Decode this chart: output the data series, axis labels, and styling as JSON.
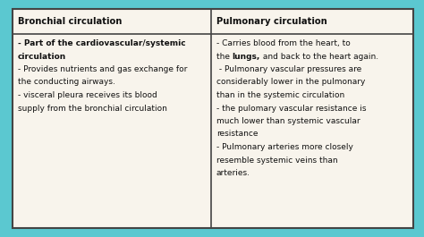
{
  "background_color": "#5bc8d0",
  "table_bg": "#f8f4ec",
  "border_color": "#444444",
  "text_color": "#111111",
  "col1_header": "Bronchial circulation",
  "col2_header": "Pulmonary circulation",
  "figsize": [
    4.74,
    2.65
  ],
  "dpi": 100,
  "col1_lines": [
    {
      "text": "- Part of the cardiovascular/systemic",
      "bold": true
    },
    {
      "text": "circulation",
      "bold": true
    },
    {
      "text": "- Provides nutrients and gas exchange for",
      "bold": false
    },
    {
      "text": "the conducting airways.",
      "bold": false
    },
    {
      "text": "- visceral pleura receives its blood",
      "bold": false
    },
    {
      "text": "supply from the bronchial circulation",
      "bold": false
    }
  ],
  "col2_lines": [
    {
      "text": "- Carries blood from the heart, to",
      "bold": false
    },
    {
      "text": "the lungs, and back to the heart again.",
      "bold": false,
      "bold_word": "lungs,"
    },
    {
      "text": " - Pulmonary vascular pressures are",
      "bold": false
    },
    {
      "text": "considerably lower in the pulmonary",
      "bold": false
    },
    {
      "text": "than in the systemic circulation",
      "bold": false
    },
    {
      "text": "- the pulomary vascular resistance is",
      "bold": false
    },
    {
      "text": "much lower than systemic vascular",
      "bold": false
    },
    {
      "text": "resistance",
      "bold": false
    },
    {
      "text": "- Pulmonary arteries more closely",
      "bold": false
    },
    {
      "text": "resemble systemic veins than",
      "bold": false
    },
    {
      "text": "arteries.",
      "bold": false
    }
  ]
}
